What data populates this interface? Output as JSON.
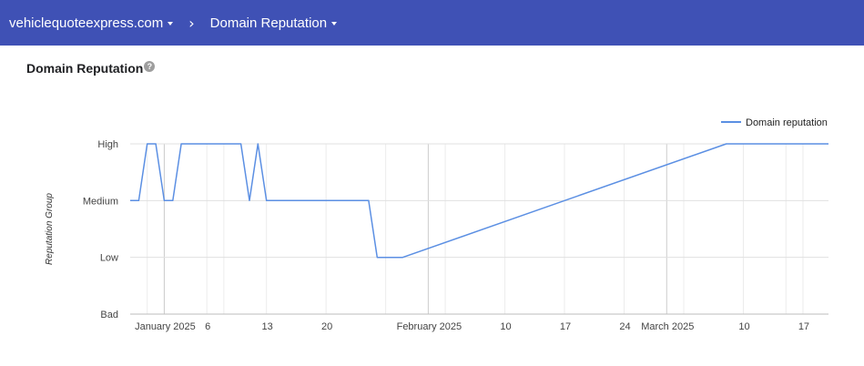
{
  "header": {
    "domain": "vehiclequoteexpress.com",
    "separator": "›",
    "section": "Domain Reputation"
  },
  "page": {
    "title": "Domain Reputation",
    "help_icon": "?"
  },
  "colors": {
    "header_bg": "#3f51b5",
    "series_line": "#5b8fe3",
    "grid": "#e0e0e0"
  },
  "chart_data": {
    "type": "line",
    "title": "",
    "xlabel": "",
    "ylabel": "Reputation Group",
    "y_categories": [
      "Bad",
      "Low",
      "Medium",
      "High"
    ],
    "x_ticks": [
      "January 2025",
      "6",
      "13",
      "20",
      "February 2025",
      "10",
      "17",
      "24",
      "March 2025",
      "10",
      "17"
    ],
    "x_range": [
      "2024-12-28",
      "2025-03-20"
    ],
    "legend": {
      "position": "top-right",
      "label": "Domain reputation"
    },
    "series": [
      {
        "name": "Domain reputation",
        "points": [
          [
            "2024-12-28",
            "Medium"
          ],
          [
            "2024-12-29",
            "Medium"
          ],
          [
            "2024-12-30",
            "High"
          ],
          [
            "2024-12-31",
            "High"
          ],
          [
            "2025-01-01",
            "Medium"
          ],
          [
            "2025-01-02",
            "Medium"
          ],
          [
            "2025-01-03",
            "High"
          ],
          [
            "2025-01-10",
            "High"
          ],
          [
            "2025-01-11",
            "Medium"
          ],
          [
            "2025-01-12",
            "High"
          ],
          [
            "2025-01-13",
            "Medium"
          ],
          [
            "2025-01-25",
            "Medium"
          ],
          [
            "2025-01-26",
            "Low"
          ],
          [
            "2025-01-29",
            "Low"
          ],
          [
            "2025-03-08",
            "High"
          ],
          [
            "2025-03-20",
            "High"
          ]
        ]
      }
    ]
  }
}
